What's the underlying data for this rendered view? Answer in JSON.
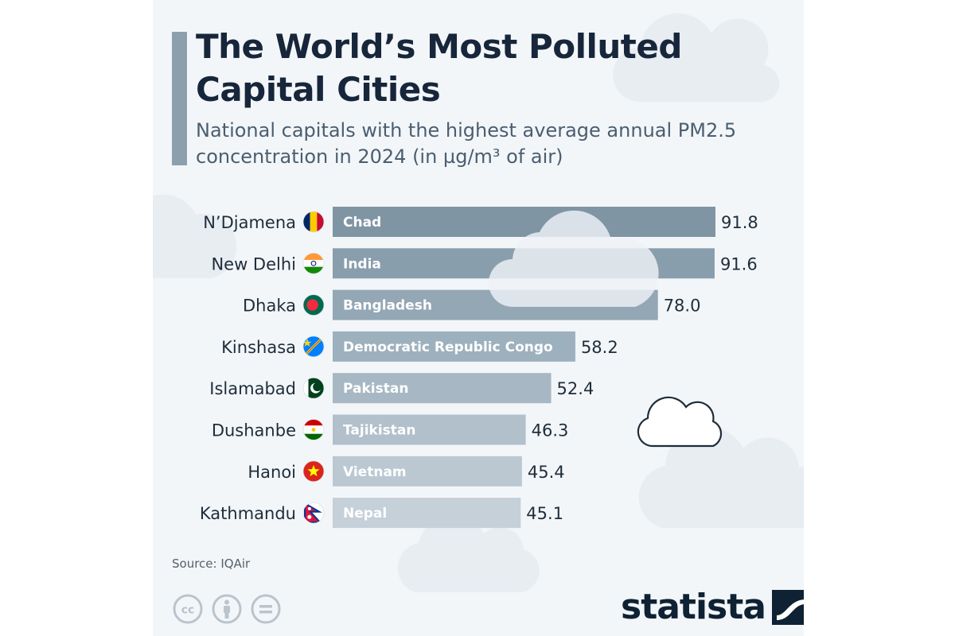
{
  "header": {
    "title": "The World’s Most Polluted Capital Cities",
    "subtitle": "National capitals with the highest average annual PM2.5 concentration in 2024 (in µg/m³ of air)"
  },
  "chart_data": {
    "type": "bar",
    "orientation": "horizontal",
    "title": "The World’s Most Polluted Capital Cities",
    "subtitle": "National capitals with the highest average annual PM2.5 concentration in 2024 (in µg/m³ of air)",
    "categories": [
      "N’Djamena",
      "New Delhi",
      "Dhaka",
      "Kinshasa",
      "Islamabad",
      "Dushanbe",
      "Hanoi",
      "Kathmandu"
    ],
    "countries": [
      "Chad",
      "India",
      "Bangladesh",
      "Democratic Republic Congo",
      "Pakistan",
      "Tajikistan",
      "Vietnam",
      "Nepal"
    ],
    "values": [
      91.8,
      91.6,
      78.0,
      58.2,
      52.4,
      46.3,
      45.4,
      45.1
    ],
    "value_labels": [
      "91.8",
      "91.6",
      "78.0",
      "58.2",
      "52.4",
      "46.3",
      "45.4",
      "45.1"
    ],
    "flags": [
      "chad-flag",
      "india-flag",
      "bangladesh-flag",
      "dr-congo-flag",
      "pakistan-flag",
      "tajikistan-flag",
      "vietnam-flag",
      "nepal-flag"
    ],
    "xlim": [
      0,
      91.8
    ],
    "bar_colors": [
      "#7f95a4",
      "#899ead",
      "#93a7b5",
      "#9db0bd",
      "#a7b8c4",
      "#b1c0cb",
      "#bbc8d2",
      "#c5d0d9"
    ],
    "grid": false,
    "legend": "none"
  },
  "footer": {
    "source": "Source: IQAir",
    "logo_text": "statista",
    "license_icons": [
      "cc-icon",
      "attribution-icon",
      "no-derivatives-icon"
    ]
  },
  "colors": {
    "background": "#f3f6f9",
    "title": "#17263a",
    "subtitle": "#4a5e70",
    "accent_bar": "#8c9fad",
    "bar_text": "#ffffff",
    "value_text": "#1f2d3a"
  }
}
